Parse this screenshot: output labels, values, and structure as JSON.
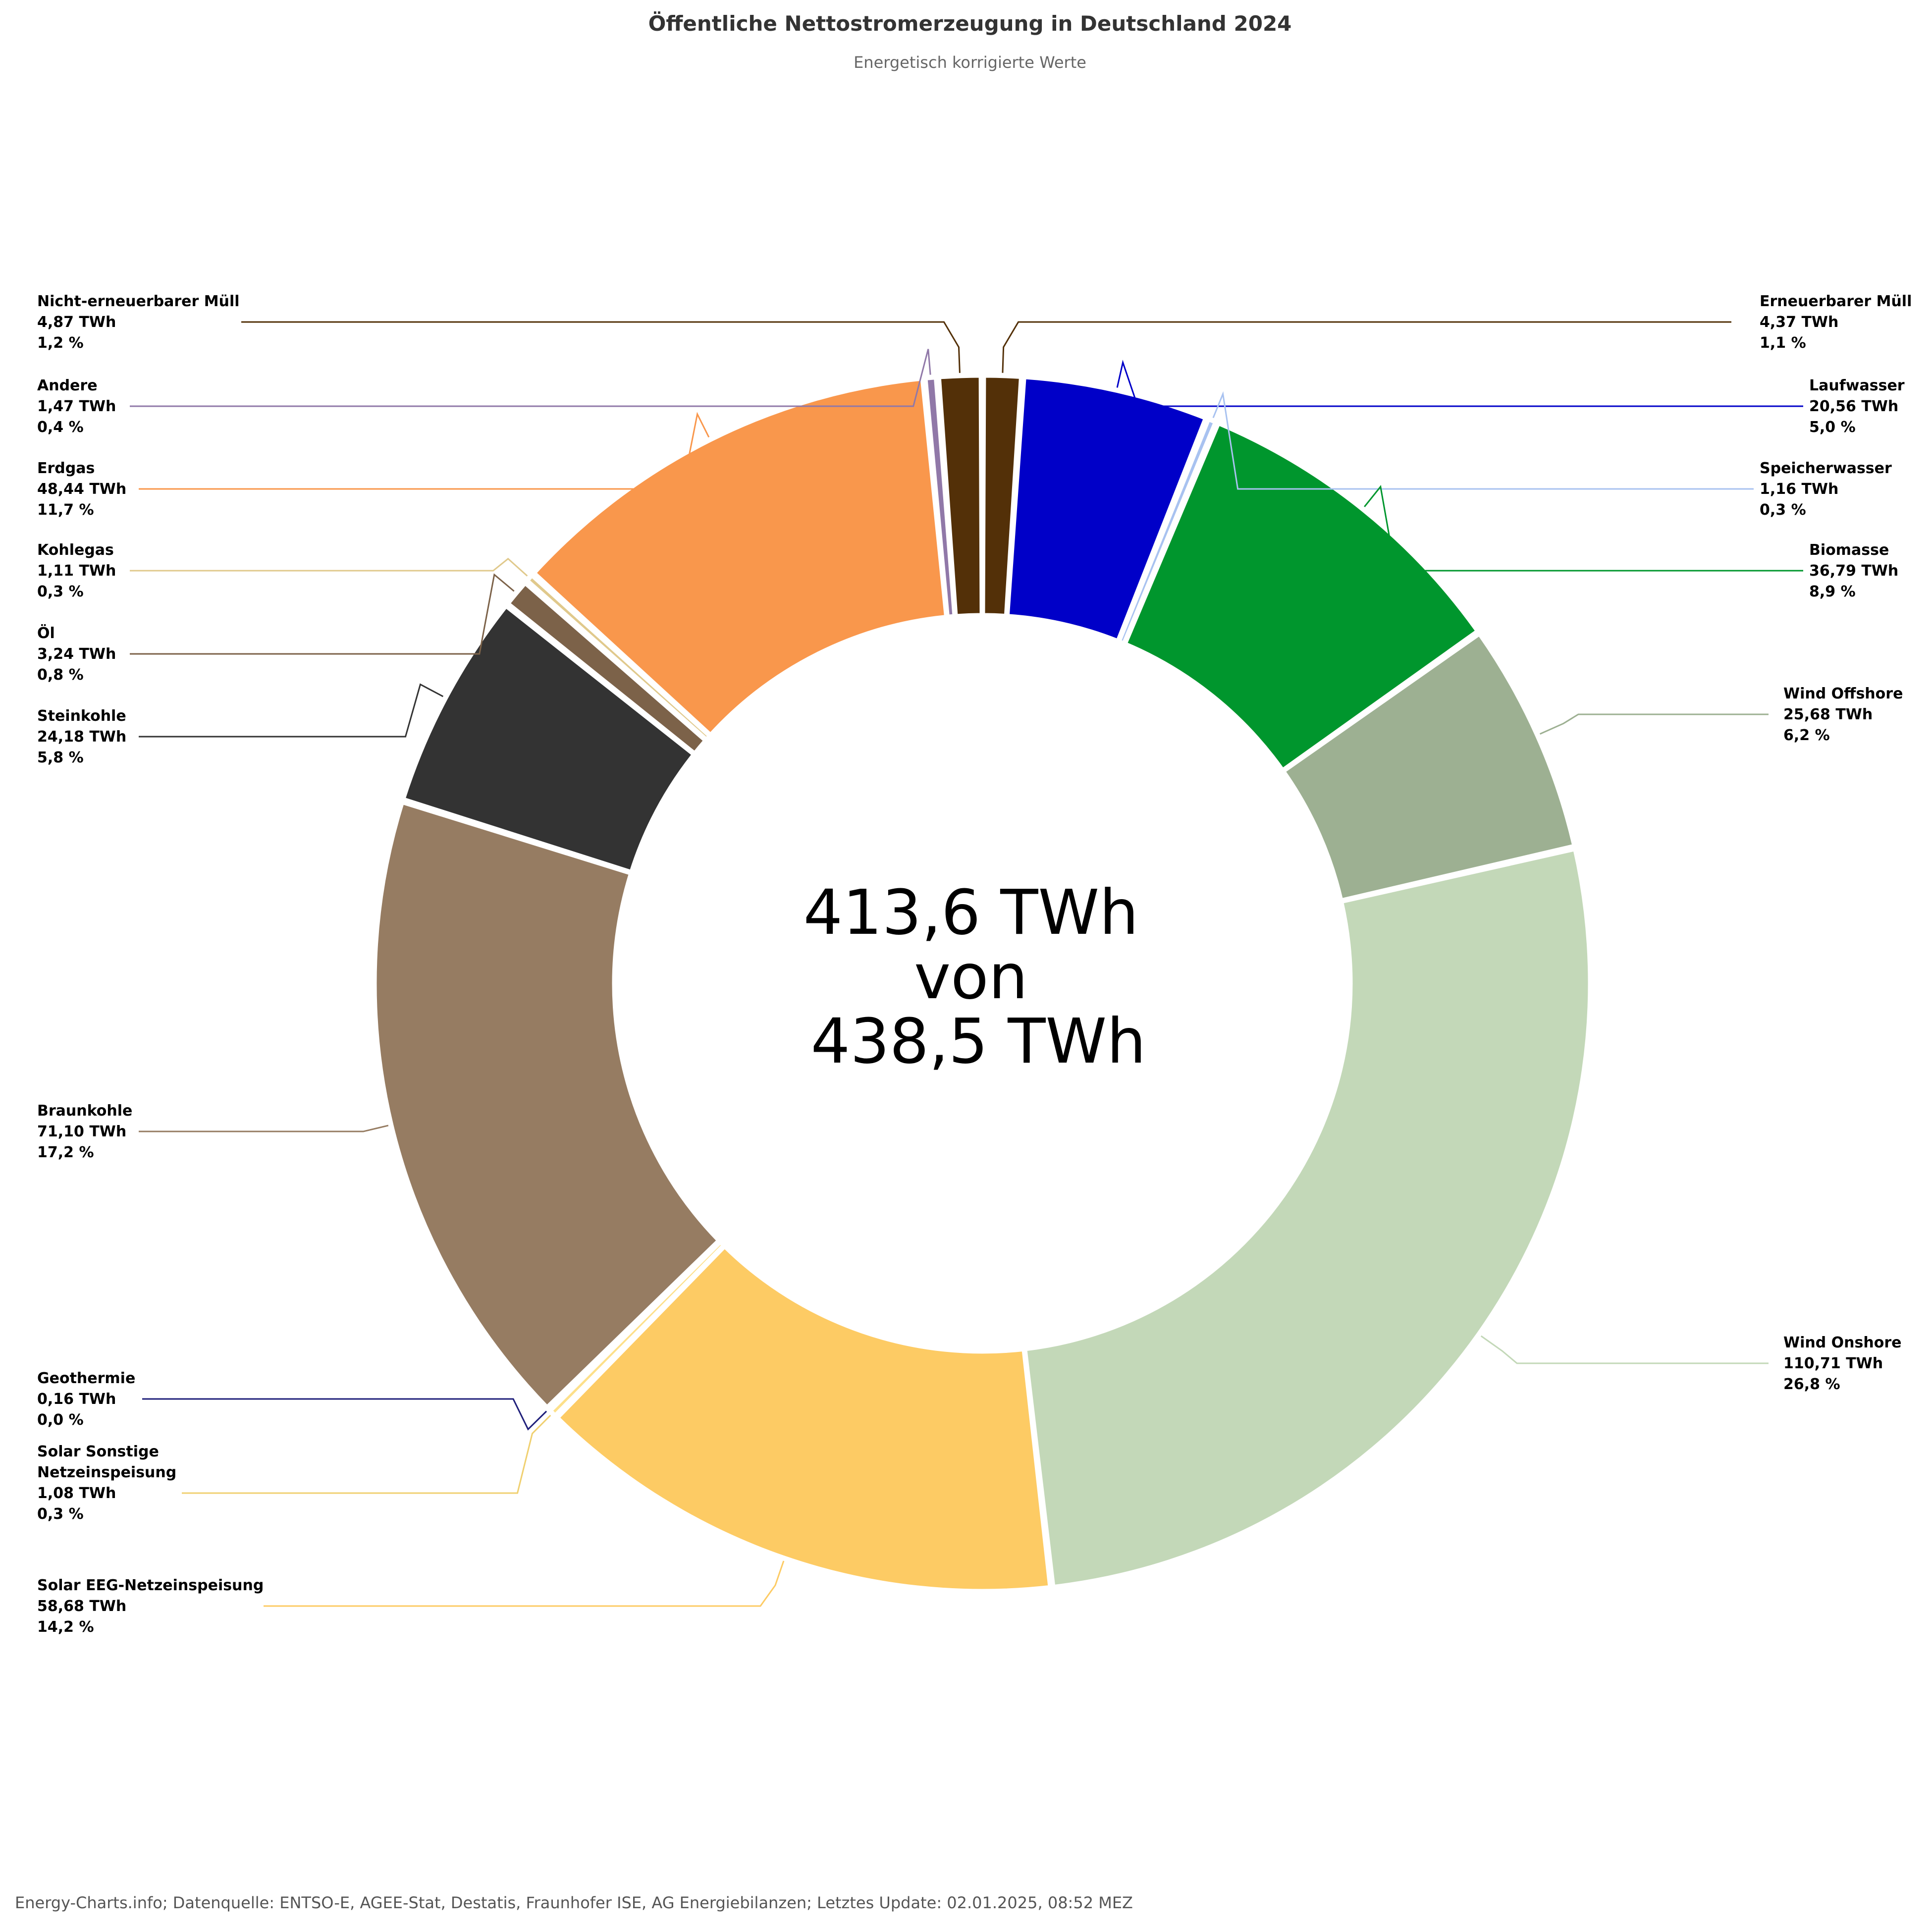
{
  "chart_data": {
    "type": "pie",
    "variant": "donut",
    "title": "Öffentliche Nettostromerzeugung in Deutschland 2024",
    "subtitle": "Energetisch korrigierte Werte",
    "center_text": [
      "413,6 TWh",
      "von",
      "438,5 TWh"
    ],
    "unit": "TWh",
    "slices": [
      {
        "name_lines": [
          "Erneuerbarer Müll"
        ],
        "value": 4.37,
        "value_label": "4,37 TWh",
        "percent_label": "1,1 %",
        "color": "#533008"
      },
      {
        "name_lines": [
          "Laufwasser"
        ],
        "value": 20.56,
        "value_label": "20,56 TWh",
        "percent_label": "5,0 %",
        "color": "#0000c8"
      },
      {
        "name_lines": [
          "Speicherwasser"
        ],
        "value": 1.16,
        "value_label": "1,16 TWh",
        "percent_label": "0,3 %",
        "color": "#a8c2f0"
      },
      {
        "name_lines": [
          "Biomasse"
        ],
        "value": 36.79,
        "value_label": "36,79 TWh",
        "percent_label": "8,9 %",
        "color": "#00962d"
      },
      {
        "name_lines": [
          "Wind Offshore"
        ],
        "value": 25.68,
        "value_label": "25,68 TWh",
        "percent_label": "6,2 %",
        "color": "#9db092"
      },
      {
        "name_lines": [
          "Wind Onshore"
        ],
        "value": 110.71,
        "value_label": "110,71 TWh",
        "percent_label": "26,8 %",
        "color": "#c3d8b8"
      },
      {
        "name_lines": [
          "Solar EEG-Netzeinspeisung"
        ],
        "value": 58.68,
        "value_label": "58,68 TWh",
        "percent_label": "14,2 %",
        "color": "#fdcb64"
      },
      {
        "name_lines": [
          "Solar Sonstige",
          "Netzeinspeisung"
        ],
        "value": 1.08,
        "value_label": "1,08 TWh",
        "percent_label": "0,3 %",
        "color": "#fde08a"
      },
      {
        "name_lines": [
          "Geothermie"
        ],
        "value": 0.16,
        "value_label": "0,16 TWh",
        "percent_label": "0,0 %",
        "color": "#1f1f7a"
      },
      {
        "name_lines": [
          "Braunkohle"
        ],
        "value": 71.1,
        "value_label": "71,10 TWh",
        "percent_label": "17,2 %",
        "color": "#967c62"
      },
      {
        "name_lines": [
          "Steinkohle"
        ],
        "value": 24.18,
        "value_label": "24,18 TWh",
        "percent_label": "5,8 %",
        "color": "#333333"
      },
      {
        "name_lines": [
          "Öl"
        ],
        "value": 3.24,
        "value_label": "3,24 TWh",
        "percent_label": "0,8 %",
        "color": "#7c6249"
      },
      {
        "name_lines": [
          "Kohlegas"
        ],
        "value": 1.11,
        "value_label": "1,11 TWh",
        "percent_label": "0,3 %",
        "color": "#e0c98c"
      },
      {
        "name_lines": [
          "Erdgas"
        ],
        "value": 48.44,
        "value_label": "48,44 TWh",
        "percent_label": "11,7 %",
        "color": "#f9974c"
      },
      {
        "name_lines": [
          "Andere"
        ],
        "value": 1.47,
        "value_label": "1,47 TWh",
        "percent_label": "0,4 %",
        "color": "#9078a8"
      },
      {
        "name_lines": [
          "Nicht-erneuerbarer Müll"
        ],
        "value": 4.87,
        "value_label": "4,87 TWh",
        "percent_label": "1,2 %",
        "color": "#533008"
      }
    ],
    "legend": "none"
  },
  "footer": "Energy-Charts.info; Datenquelle: ENTSO-E, AGEE-Stat, Destatis, Fraunhofer ISE, AG Energiebilanzen; Letztes Update: 02.01.2025, 08:52 MEZ"
}
